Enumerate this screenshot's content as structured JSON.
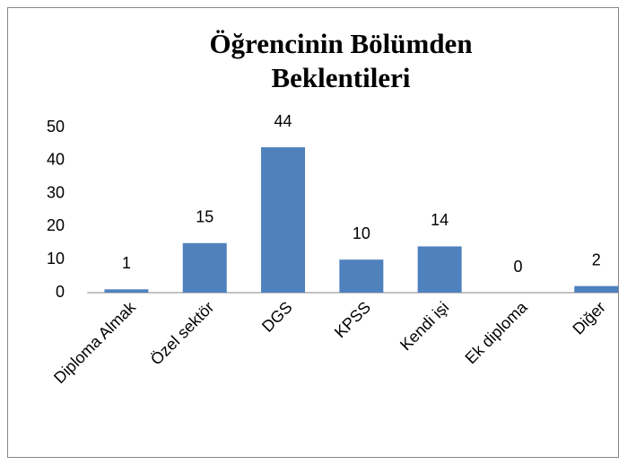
{
  "chart_data": {
    "type": "bar",
    "title": "Öğrencinin Bölümden Beklentileri",
    "categories": [
      "Diploma Almak",
      "Özel sektör",
      "DGS",
      "KPSS",
      "Kendi işi",
      "Ek diploma",
      "Diğer"
    ],
    "values": [
      1,
      15,
      44,
      10,
      14,
      0,
      2
    ],
    "color": "#4f81bd",
    "ylim": [
      0,
      50
    ],
    "yticks": [
      0,
      10,
      20,
      30,
      40,
      50
    ],
    "grid": false
  }
}
